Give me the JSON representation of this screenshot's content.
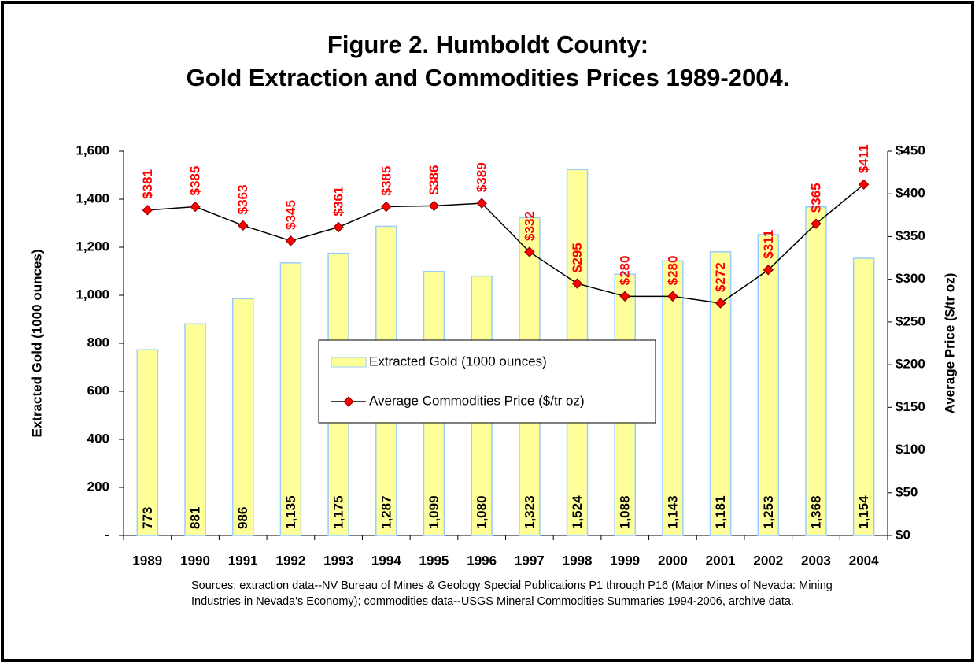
{
  "chart_data": {
    "type": "bar",
    "title": [
      "Figure 2. Humboldt County:",
      "Gold Extraction and Commodities Prices 1989-2004."
    ],
    "ylabel": "Extracted Gold (1000 ounces)",
    "y2label": "Average Price ($/tr oz)",
    "source": "Sources: extraction data--NV Bureau of Mines & Geology Special Publications P1 through P16 (Major Mines of Nevada: Mining Industries in Nevada's Economy); commodities data--USGS Mineral Commodities Summaries 1994-2006, archive data.",
    "categories": [
      "1989",
      "1990",
      "1991",
      "1992",
      "1993",
      "1994",
      "1995",
      "1996",
      "1997",
      "1998",
      "1999",
      "2000",
      "2001",
      "2002",
      "2003",
      "2004"
    ],
    "series": [
      {
        "name": "Extracted Gold (1000 ounces)",
        "type": "bar",
        "color": "#ffff99",
        "edge": "#99ccff",
        "label_color": "#000000",
        "values": [
          773,
          881,
          986,
          1135,
          1175,
          1287,
          1099,
          1080,
          1323,
          1524,
          1088,
          1143,
          1181,
          1253,
          1368,
          1154
        ],
        "value_labels": [
          "773",
          "881",
          "986",
          "1,135",
          "1,175",
          "1,287",
          "1,099",
          "1,080",
          "1,323",
          "1,524",
          "1,088",
          "1,143",
          "1,181",
          "1,253",
          "1,368",
          "1,154"
        ]
      },
      {
        "name": "Average Commodities Price ($/tr oz)",
        "type": "line",
        "axis": "y2",
        "color": "#000000",
        "marker_color": "#ff0000",
        "label_color": "#ff0000",
        "values": [
          381,
          385,
          363,
          345,
          361,
          385,
          386,
          389,
          332,
          295,
          280,
          280,
          272,
          311,
          365,
          411
        ],
        "value_labels": [
          "$381",
          "$385",
          "$363",
          "$345",
          "$361",
          "$385",
          "$386",
          "$389",
          "$332",
          "$295",
          "$280",
          "$280",
          "$272",
          "$311",
          "$365",
          "$411"
        ]
      }
    ],
    "ylim": [
      0,
      1600
    ],
    "yticks": [
      {
        "value": 0,
        "label": "-"
      },
      200,
      400,
      600,
      800,
      {
        "value": 1000,
        "label": "1,000"
      },
      {
        "value": 1200,
        "label": "1,200"
      },
      {
        "value": 1400,
        "label": "1,400"
      },
      {
        "value": 1600,
        "label": "1,600"
      }
    ],
    "y2lim": [
      0,
      450
    ],
    "y2ticks": [
      {
        "value": 0,
        "label": "$0"
      },
      {
        "value": 50,
        "label": "$50"
      },
      {
        "value": 100,
        "label": "$100"
      },
      {
        "value": 150,
        "label": "$150"
      },
      {
        "value": 200,
        "label": "$200"
      },
      {
        "value": 250,
        "label": "$250"
      },
      {
        "value": 300,
        "label": "$300"
      },
      {
        "value": 350,
        "label": "$350"
      },
      {
        "value": 400,
        "label": "$400"
      },
      {
        "value": 450,
        "label": "$450"
      }
    ],
    "grid": false,
    "legend": "center"
  }
}
